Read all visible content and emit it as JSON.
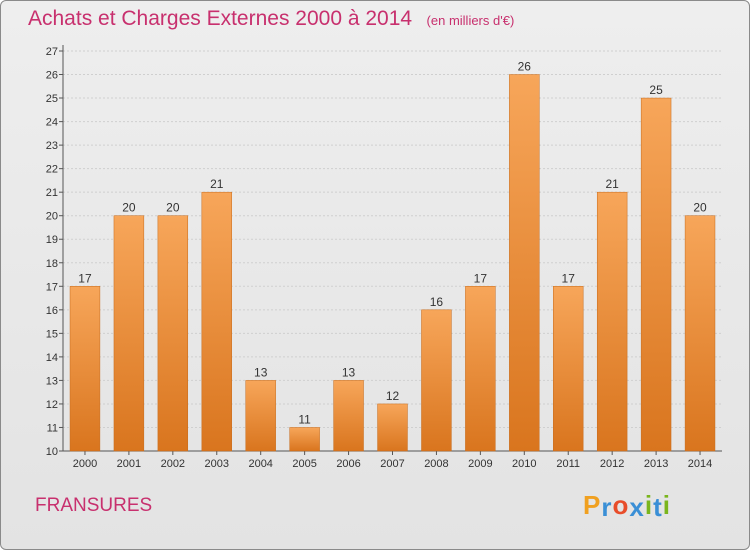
{
  "title": "Achats et Charges Externes 2000 à 2014",
  "unit": "(en milliers d'€)",
  "commune": "FRANSURES",
  "logo": {
    "letters": [
      "P",
      "r",
      "o",
      "x",
      "i",
      "t",
      "i"
    ],
    "colors": [
      "#f0a020",
      "#3a8fd6",
      "#e84d2a",
      "#3a8fd6",
      "#7ab51d",
      "#3a8fd6",
      "#7ab51d"
    ]
  },
  "colors": {
    "title": "#c8306e",
    "bar_top": "#f7a65a",
    "bar_bottom": "#d9751e",
    "grid": "#cfcfcf"
  },
  "chart_data": {
    "type": "bar",
    "categories": [
      "2000",
      "2001",
      "2002",
      "2003",
      "2004",
      "2005",
      "2006",
      "2007",
      "2008",
      "2009",
      "2010",
      "2011",
      "2012",
      "2013",
      "2014"
    ],
    "values": [
      17,
      20,
      20,
      21,
      13,
      11,
      13,
      12,
      16,
      17,
      26,
      17,
      21,
      25,
      20
    ],
    "ylim": [
      10,
      27
    ],
    "yticks": [
      10,
      11,
      12,
      13,
      14,
      15,
      16,
      17,
      18,
      19,
      20,
      21,
      22,
      23,
      24,
      25,
      26,
      27
    ],
    "grid": true,
    "data_labels": true
  }
}
